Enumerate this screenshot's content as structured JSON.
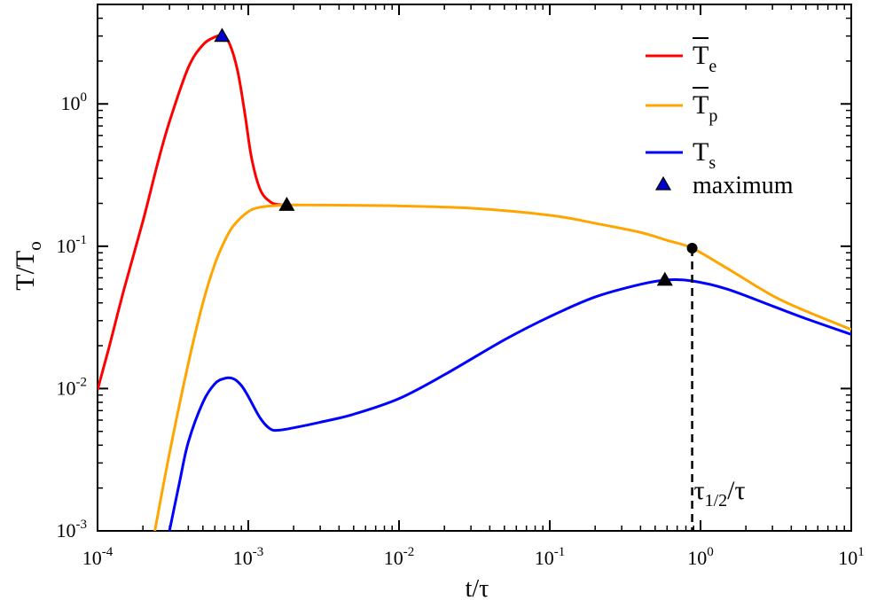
{
  "chart_data": {
    "type": "line",
    "xlabel": "t/τ",
    "ylabel_main": "T/T",
    "ylabel_sub": "o",
    "x_scale": "log",
    "y_scale": "log",
    "xlim": [
      0.0001,
      10
    ],
    "ylim": [
      0.001,
      5
    ],
    "grid": false,
    "legend_position": "top-right",
    "x_ticks": [
      {
        "value": 0.0001,
        "base": "10",
        "exp": "-4"
      },
      {
        "value": 0.001,
        "base": "10",
        "exp": "-3"
      },
      {
        "value": 0.01,
        "base": "10",
        "exp": "-2"
      },
      {
        "value": 0.1,
        "base": "10",
        "exp": "-1"
      },
      {
        "value": 1,
        "base": "10",
        "exp": "0"
      },
      {
        "value": 10,
        "base": "10",
        "exp": "1"
      }
    ],
    "y_ticks": [
      {
        "value": 0.001,
        "base": "10",
        "exp": "-3"
      },
      {
        "value": 0.01,
        "base": "10",
        "exp": "-2"
      },
      {
        "value": 0.1,
        "base": "10",
        "exp": "-1"
      },
      {
        "value": 1,
        "base": "10",
        "exp": "0"
      }
    ],
    "series": [
      {
        "name": "T_e",
        "legend_main": "T",
        "legend_sub": "e",
        "overbar": true,
        "color": "#ff0000",
        "x": [
          0.0001,
          0.00012,
          0.00015,
          0.0002,
          0.00025,
          0.0003,
          0.0004,
          0.0005,
          0.0006,
          0.00067,
          0.00075,
          0.00085,
          0.00095,
          0.00105,
          0.0012,
          0.0014,
          0.0016,
          0.0018
        ],
        "y": [
          0.0098,
          0.02,
          0.05,
          0.15,
          0.38,
          0.75,
          1.8,
          2.6,
          2.95,
          3.0,
          2.65,
          1.7,
          0.85,
          0.42,
          0.25,
          0.205,
          0.196,
          0.195
        ]
      },
      {
        "name": "T_p",
        "legend_main": "T",
        "legend_sub": "p",
        "overbar": true,
        "color": "#ffa500",
        "x": [
          0.00024,
          0.0003,
          0.0004,
          0.0005,
          0.0006,
          0.0007,
          0.0008,
          0.001,
          0.0012,
          0.0015,
          0.0018,
          0.002,
          0.005,
          0.01,
          0.03,
          0.1,
          0.2,
          0.4,
          0.6,
          0.88,
          1.5,
          3,
          5,
          10
        ],
        "y": [
          0.001,
          0.0035,
          0.015,
          0.04,
          0.075,
          0.11,
          0.14,
          0.175,
          0.188,
          0.193,
          0.195,
          0.195,
          0.194,
          0.192,
          0.185,
          0.165,
          0.145,
          0.125,
          0.11,
          0.097,
          0.07,
          0.045,
          0.035,
          0.026
        ]
      },
      {
        "name": "T_s",
        "legend_main": "T",
        "legend_sub": "s",
        "overbar": false,
        "color": "#0000ff",
        "x": [
          0.0003,
          0.00035,
          0.0004,
          0.0005,
          0.0006,
          0.0007,
          0.0008,
          0.0009,
          0.001,
          0.0012,
          0.0014,
          0.0016,
          0.002,
          0.003,
          0.005,
          0.01,
          0.02,
          0.05,
          0.1,
          0.2,
          0.4,
          0.6,
          0.88,
          1.5,
          3,
          5,
          10
        ],
        "y": [
          0.001,
          0.0022,
          0.0042,
          0.008,
          0.0108,
          0.0118,
          0.0117,
          0.0105,
          0.0088,
          0.0062,
          0.0052,
          0.0051,
          0.0053,
          0.0058,
          0.0066,
          0.0085,
          0.0125,
          0.022,
          0.032,
          0.044,
          0.054,
          0.058,
          0.057,
          0.05,
          0.038,
          0.031,
          0.024
        ]
      }
    ],
    "maxima": [
      {
        "x": 0.00067,
        "y": 3.0,
        "fill": "#0000cc"
      },
      {
        "x": 0.0018,
        "y": 0.195,
        "fill": "#000000"
      },
      {
        "x": 0.58,
        "y": 0.058,
        "fill": "#000000"
      }
    ],
    "legend_marker_label": "maximum",
    "annotation": {
      "x": 0.88,
      "y": 0.097,
      "label_main": "τ",
      "label_sub": "1/2",
      "label_tail": "/τ"
    }
  }
}
